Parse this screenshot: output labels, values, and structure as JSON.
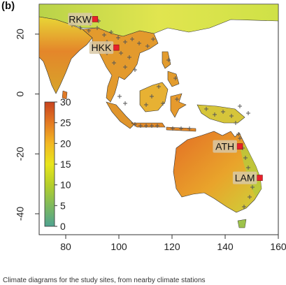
{
  "figure": {
    "panel_label": "(b)",
    "caption": "Climate diagrams for the study sites, from nearby climate stations"
  },
  "map": {
    "x_axis": {
      "ticks": [
        80,
        100,
        120,
        140,
        160
      ],
      "range": [
        70,
        160
      ]
    },
    "y_axis": {
      "ticks": [
        20,
        0,
        -20,
        -40
      ],
      "range": [
        -47,
        30
      ]
    },
    "colorbar": {
      "ticks": [
        30,
        25,
        20,
        15,
        10,
        5,
        0
      ],
      "range": [
        0,
        30
      ],
      "colors": [
        "#4fa391",
        "#7fba5d",
        "#b5cf2a",
        "#e8e51c",
        "#f2b823",
        "#e47a23",
        "#c8431e"
      ]
    },
    "sites": [
      {
        "code": "RKW",
        "lon": 91,
        "lat": 25
      },
      {
        "code": "HKK",
        "lon": 99,
        "lat": 15.5
      },
      {
        "code": "ATH",
        "lon": 145.5,
        "lat": -17.5
      },
      {
        "code": "LAM",
        "lon": 153,
        "lat": -28
      }
    ],
    "colors": {
      "site_marker": "#e8202a",
      "station_marker": "#555555",
      "land_border": "#333333"
    }
  }
}
